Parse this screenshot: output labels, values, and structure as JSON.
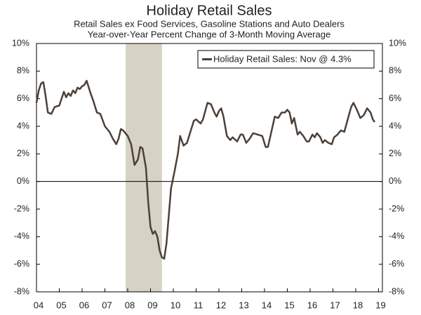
{
  "chart_data": {
    "type": "line",
    "title": "Holiday Retail Sales",
    "subtitle": [
      "Retail Sales ex Food Services, Gasoline Stations and Auto Dealers",
      "Year-over-Year Percent Change of 3-Month Moving Average"
    ],
    "recession": [
      2007.91,
      2009.5
    ],
    "recession_color": "#d6d2c4",
    "x": [
      2004.0,
      2004.1,
      2004.2,
      2004.3,
      2004.4,
      2004.5,
      2004.65,
      2004.8,
      2005.0,
      2005.1,
      2005.2,
      2005.3,
      2005.4,
      2005.5,
      2005.6,
      2005.7,
      2005.8,
      2005.9,
      2006.0,
      2006.1,
      2006.2,
      2006.35,
      2006.5,
      2006.65,
      2006.8,
      2007.0,
      2007.2,
      2007.35,
      2007.5,
      2007.6,
      2007.7,
      2007.8,
      2007.9,
      2008.0,
      2008.15,
      2008.3,
      2008.45,
      2008.55,
      2008.65,
      2008.8,
      2008.9,
      2009.0,
      2009.1,
      2009.2,
      2009.3,
      2009.4,
      2009.5,
      2009.6,
      2009.7,
      2009.8,
      2009.9,
      2010.05,
      2010.2,
      2010.3,
      2010.45,
      2010.6,
      2010.75,
      2010.9,
      2011.0,
      2011.2,
      2011.3,
      2011.5,
      2011.65,
      2011.8,
      2011.9,
      2012.0,
      2012.1,
      2012.2,
      2012.35,
      2012.5,
      2012.6,
      2012.8,
      2012.95,
      2013.05,
      2013.2,
      2013.35,
      2013.5,
      2013.7,
      2013.9,
      2014.05,
      2014.15,
      2014.3,
      2014.45,
      2014.6,
      2014.75,
      2014.9,
      2015.0,
      2015.1,
      2015.2,
      2015.3,
      2015.45,
      2015.55,
      2015.7,
      2015.85,
      2015.95,
      2016.1,
      2016.2,
      2016.3,
      2016.45,
      2016.55,
      2016.65,
      2016.8,
      2016.95,
      2017.05,
      2017.2,
      2017.35,
      2017.5,
      2017.65,
      2017.8,
      2017.9,
      2018.05,
      2018.2,
      2018.35,
      2018.5,
      2018.65,
      2018.75,
      2018.83
    ],
    "series": [
      {
        "name": "Holiday Retail Sales: Nov @ 4.3%",
        "color": "#4d4038",
        "values": [
          5.7,
          6.6,
          7.1,
          7.2,
          6.2,
          5.0,
          4.9,
          5.4,
          5.5,
          6.0,
          6.5,
          6.1,
          6.4,
          6.2,
          6.6,
          6.4,
          6.8,
          6.7,
          6.9,
          7.0,
          7.3,
          6.5,
          5.8,
          5.0,
          4.9,
          4.0,
          3.6,
          3.1,
          2.7,
          3.1,
          3.8,
          3.7,
          3.5,
          3.3,
          2.7,
          1.2,
          1.6,
          2.5,
          2.4,
          1.0,
          -1.5,
          -3.3,
          -3.8,
          -3.6,
          -4.0,
          -5.0,
          -5.5,
          -5.6,
          -4.5,
          -2.5,
          -0.5,
          0.7,
          2.0,
          3.3,
          2.6,
          2.8,
          3.6,
          4.4,
          4.5,
          4.2,
          4.5,
          5.7,
          5.6,
          5.0,
          4.7,
          5.1,
          5.3,
          4.7,
          3.3,
          3.0,
          3.2,
          2.9,
          3.4,
          3.4,
          2.8,
          3.1,
          3.5,
          3.4,
          3.3,
          2.5,
          2.5,
          3.6,
          4.7,
          4.6,
          5.0,
          5.0,
          5.2,
          5.0,
          4.2,
          4.6,
          3.4,
          3.6,
          3.3,
          2.9,
          2.9,
          3.4,
          3.2,
          3.5,
          3.2,
          2.8,
          3.0,
          2.8,
          2.7,
          3.2,
          3.4,
          3.7,
          3.6,
          4.5,
          5.4,
          5.7,
          5.2,
          4.6,
          4.8,
          5.3,
          5.0,
          4.5,
          4.3
        ]
      }
    ],
    "xlim": [
      2004,
      2019.17
    ],
    "xticks": [
      {
        "value": 2004,
        "label": "04"
      },
      {
        "value": 2005,
        "label": "05"
      },
      {
        "value": 2006,
        "label": "06"
      },
      {
        "value": 2007,
        "label": "07"
      },
      {
        "value": 2008,
        "label": "08"
      },
      {
        "value": 2009,
        "label": "09"
      },
      {
        "value": 2010,
        "label": "10"
      },
      {
        "value": 2011,
        "label": "11"
      },
      {
        "value": 2012,
        "label": "12"
      },
      {
        "value": 2013,
        "label": "13"
      },
      {
        "value": 2014,
        "label": "14"
      },
      {
        "value": 2015,
        "label": "15"
      },
      {
        "value": 2016,
        "label": "16"
      },
      {
        "value": 2017,
        "label": "17"
      },
      {
        "value": 2018,
        "label": "18"
      },
      {
        "value": 2019,
        "label": "19"
      }
    ],
    "ylim": [
      -8,
      10
    ],
    "yticks": [
      {
        "value": -8,
        "label": "-8%"
      },
      {
        "value": -6,
        "label": "-6%"
      },
      {
        "value": -4,
        "label": "-4%"
      },
      {
        "value": -2,
        "label": "-2%"
      },
      {
        "value": 0,
        "label": "0%"
      },
      {
        "value": 2,
        "label": "2%"
      },
      {
        "value": 4,
        "label": "4%"
      },
      {
        "value": 6,
        "label": "6%"
      },
      {
        "value": 8,
        "label": "8%"
      },
      {
        "value": 10,
        "label": "10%"
      }
    ],
    "y2lim": [
      -8,
      10
    ],
    "y2ticks": [
      {
        "value": -8,
        "label": "-8%"
      },
      {
        "value": -6,
        "label": "-6%"
      },
      {
        "value": -4,
        "label": "-4%"
      },
      {
        "value": -2,
        "label": "-2%"
      },
      {
        "value": 0,
        "label": "0%"
      },
      {
        "value": 2,
        "label": "2%"
      },
      {
        "value": 4,
        "label": "4%"
      },
      {
        "value": 6,
        "label": "6%"
      },
      {
        "value": 8,
        "label": "8%"
      },
      {
        "value": 10,
        "label": "10%"
      }
    ],
    "legend": "top-right"
  }
}
